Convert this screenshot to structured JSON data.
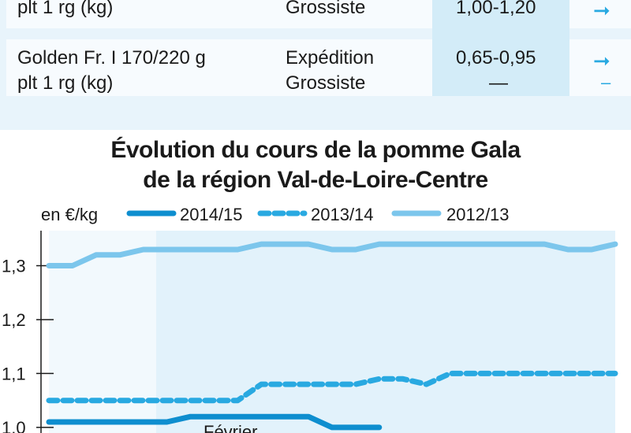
{
  "table": {
    "rows": [
      {
        "product_lines": [
          "plt 1 rg (kg)"
        ],
        "stages": [
          "Grossiste"
        ],
        "prices": [
          "1,00-1,20"
        ],
        "trends": [
          "right-arrow-icon"
        ]
      },
      {
        "product_lines": [
          "Golden Fr. I 170/220 g",
          "plt 1 rg (kg)"
        ],
        "stages": [
          "Expédition",
          "Grossiste"
        ],
        "prices": [
          "0,65-0,95",
          "—"
        ],
        "trends": [
          "right-arrow-icon",
          "dash-icon"
        ]
      }
    ],
    "colors": {
      "band": "#e8f4fb",
      "row": "#f7fbfe",
      "highlight_col": "#d3ecf8",
      "accent": "#29a9e1"
    }
  },
  "chart_data": {
    "type": "line",
    "title_lines": [
      "Évolution du cours de la pomme Gala",
      "de la région Val-de-Loire-Centre"
    ],
    "unit_label": "en €/kg",
    "x_tick_labels": [
      "Février"
    ],
    "y_ticks": [
      1.0,
      1.1,
      1.2,
      1.3
    ],
    "y_tick_labels": [
      "1,0",
      "1,1",
      "1,2",
      "1,3"
    ],
    "ylim": [
      0.975,
      1.365
    ],
    "xlim": [
      0,
      24
    ],
    "grid": false,
    "legend_position": "top",
    "series": [
      {
        "name": "2014/15",
        "style": "solid",
        "color": "#0e8ecf",
        "x": [
          0,
          1,
          2,
          3,
          4,
          5,
          6,
          7,
          8,
          9,
          10,
          11,
          12,
          13,
          14
        ],
        "y": [
          1.01,
          1.01,
          1.01,
          1.01,
          1.01,
          1.01,
          1.02,
          1.02,
          1.02,
          1.02,
          1.02,
          1.02,
          1.0,
          1.0,
          1.0
        ]
      },
      {
        "name": "2013/14",
        "style": "dashed",
        "color": "#29a9e1",
        "x": [
          0,
          1,
          2,
          3,
          4,
          5,
          6,
          7,
          8,
          9,
          10,
          11,
          12,
          13,
          14,
          15,
          16,
          17,
          18,
          19,
          20,
          21,
          22,
          23,
          24
        ],
        "y": [
          1.05,
          1.05,
          1.05,
          1.05,
          1.05,
          1.05,
          1.05,
          1.05,
          1.05,
          1.08,
          1.08,
          1.08,
          1.08,
          1.08,
          1.09,
          1.09,
          1.08,
          1.1,
          1.1,
          1.1,
          1.1,
          1.1,
          1.1,
          1.1,
          1.1
        ]
      },
      {
        "name": "2012/13",
        "style": "solid",
        "color": "#7cc6ec",
        "x": [
          0,
          1,
          2,
          3,
          4,
          5,
          6,
          7,
          8,
          9,
          10,
          11,
          12,
          13,
          14,
          15,
          16,
          17,
          18,
          19,
          20,
          21,
          22,
          23,
          24
        ],
        "y": [
          1.3,
          1.3,
          1.32,
          1.32,
          1.33,
          1.33,
          1.33,
          1.33,
          1.33,
          1.34,
          1.34,
          1.34,
          1.33,
          1.33,
          1.34,
          1.34,
          1.34,
          1.34,
          1.34,
          1.34,
          1.34,
          1.34,
          1.33,
          1.33,
          1.34
        ]
      }
    ],
    "colors": {
      "plot_band_light": "#f2f9fd",
      "plot_band_dark": "#e2f2fb",
      "axis": "#1a1a1a"
    }
  }
}
